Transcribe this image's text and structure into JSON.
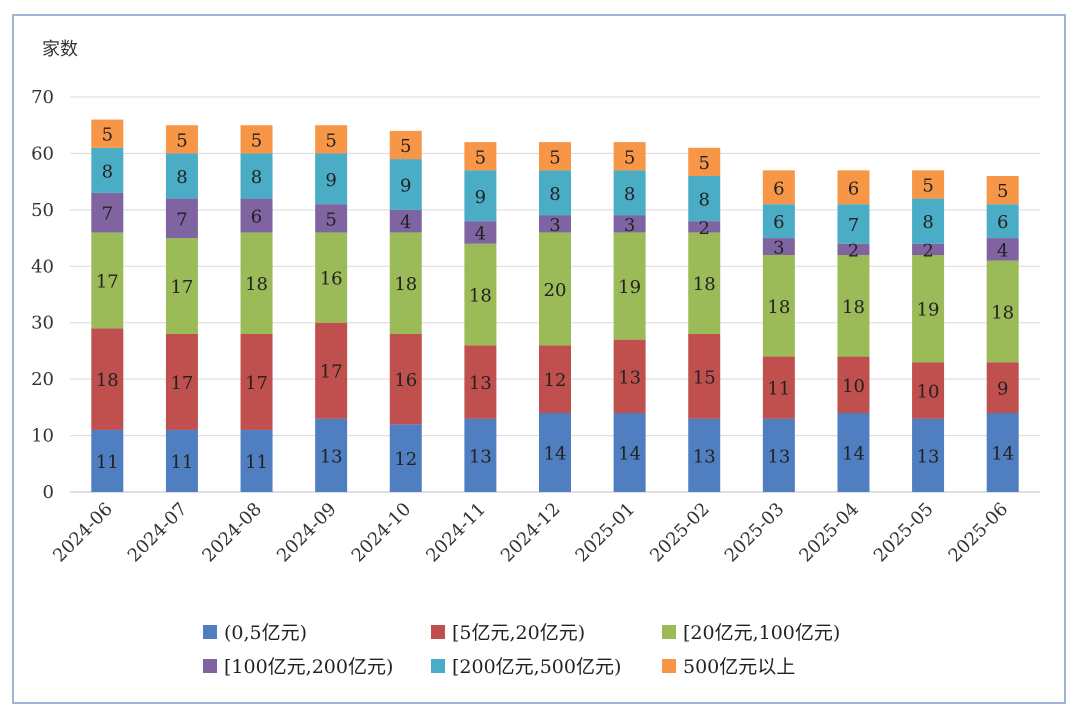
{
  "chart_data": {
    "type": "bar",
    "stacked": true,
    "ylabel": "家数",
    "ylim": [
      0,
      70
    ],
    "yticks": [
      0,
      10,
      20,
      30,
      40,
      50,
      60,
      70
    ],
    "categories": [
      "2024-06",
      "2024-07",
      "2024-08",
      "2024-09",
      "2024-10",
      "2024-11",
      "2024-12",
      "2025-01",
      "2025-02",
      "2025-03",
      "2025-04",
      "2025-05",
      "2025-06"
    ],
    "series": [
      {
        "name": "(0,5亿元)",
        "color": "#4f7fc1",
        "values": [
          11,
          11,
          11,
          13,
          12,
          13,
          14,
          14,
          13,
          13,
          14,
          13,
          14
        ]
      },
      {
        "name": "[5亿元,20亿元)",
        "color": "#c0504d",
        "values": [
          18,
          17,
          17,
          17,
          16,
          13,
          12,
          13,
          15,
          11,
          10,
          10,
          9
        ]
      },
      {
        "name": "[20亿元,100亿元)",
        "color": "#9bbb59",
        "values": [
          17,
          17,
          18,
          16,
          18,
          18,
          20,
          19,
          18,
          18,
          18,
          19,
          18
        ]
      },
      {
        "name": "[100亿元,200亿元)",
        "color": "#8064a2",
        "values": [
          7,
          7,
          6,
          5,
          4,
          4,
          3,
          3,
          2,
          3,
          2,
          2,
          4
        ]
      },
      {
        "name": "[200亿元,500亿元)",
        "color": "#4bacc6",
        "values": [
          8,
          8,
          8,
          9,
          9,
          9,
          8,
          8,
          8,
          6,
          7,
          8,
          6
        ]
      },
      {
        "name": "500亿元以上",
        "color": "#f79646",
        "values": [
          5,
          5,
          5,
          5,
          5,
          5,
          5,
          5,
          5,
          6,
          6,
          5,
          5
        ]
      }
    ],
    "legend_position": "bottom"
  }
}
